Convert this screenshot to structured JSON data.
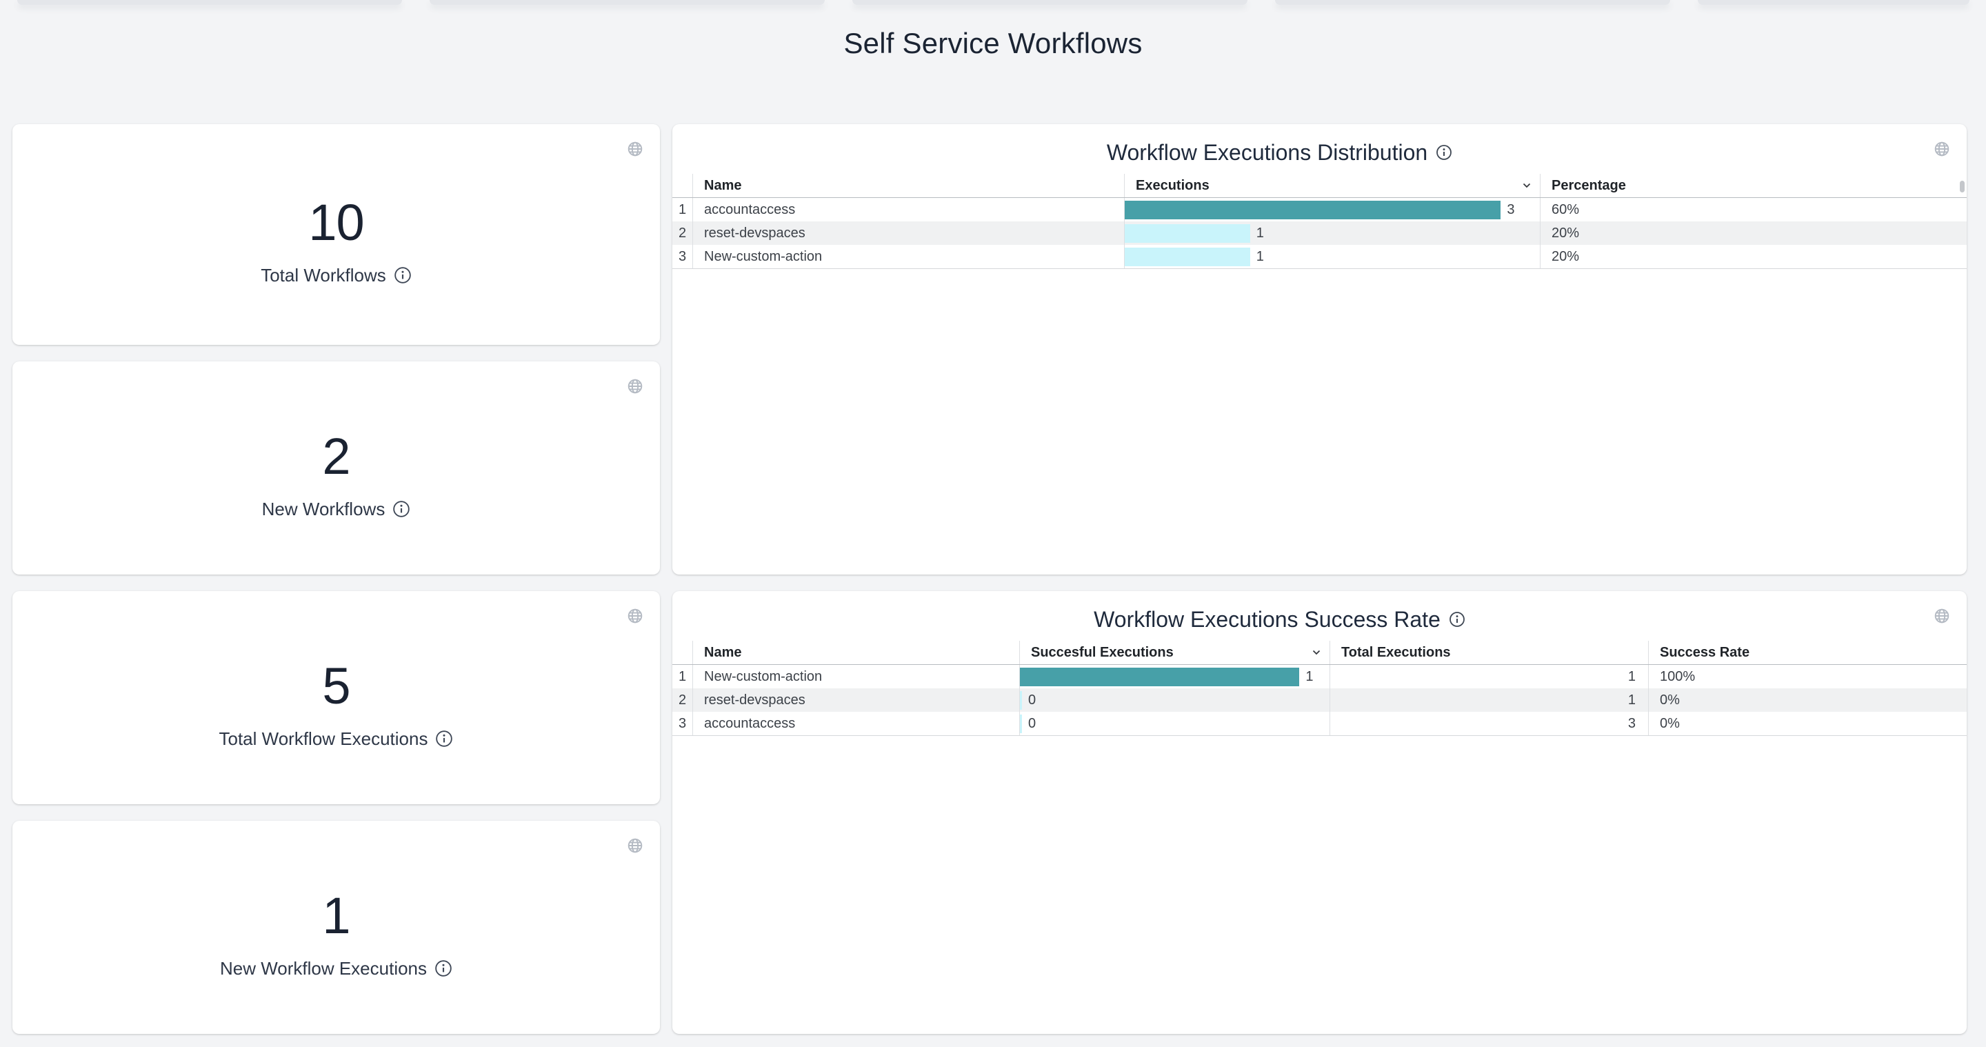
{
  "page": {
    "title": "Self Service Workflows"
  },
  "stat_cards": [
    {
      "value": "10",
      "label": "Total Workflows"
    },
    {
      "value": "2",
      "label": "New Workflows"
    },
    {
      "value": "5",
      "label": "Total Workflow Executions"
    },
    {
      "value": "1",
      "label": "New Workflow Executions"
    }
  ],
  "distribution_table": {
    "title": "Workflow Executions Distribution",
    "columns": {
      "name": "Name",
      "executions": "Executions",
      "percentage": "Percentage"
    },
    "sorted_column": "Executions",
    "sort_direction": "descending",
    "rows": [
      {
        "index": "1",
        "name": "accountaccess",
        "executions": 3,
        "percentage": "60%"
      },
      {
        "index": "2",
        "name": "reset-devspaces",
        "executions": 1,
        "percentage": "20%"
      },
      {
        "index": "3",
        "name": "New-custom-action",
        "executions": 1,
        "percentage": "20%"
      }
    ],
    "max_executions": 3
  },
  "success_table": {
    "title": "Workflow Executions Success Rate",
    "columns": {
      "name": "Name",
      "successful": "Succesful Executions",
      "total": "Total Executions",
      "rate": "Success Rate"
    },
    "sorted_column": "Succesful Executions",
    "sort_direction": "descending",
    "rows": [
      {
        "index": "1",
        "name": "New-custom-action",
        "successful": 1,
        "total": "1",
        "rate": "100%"
      },
      {
        "index": "2",
        "name": "reset-devspaces",
        "successful": 0,
        "total": "1",
        "rate": "0%"
      },
      {
        "index": "3",
        "name": "accountaccess",
        "successful": 0,
        "total": "3",
        "rate": "0%"
      }
    ],
    "max_successful": 1
  },
  "icons": {
    "globe": "globe-icon",
    "info": "info-icon",
    "sort": "chevron-down-icon"
  },
  "colors": {
    "page_bg": "#f3f4f6",
    "card_bg": "#ffffff",
    "title_text": "#1b2433",
    "bar_teal": "#47a0a8",
    "bar_cyan": "#c9f4fb",
    "row_stripe": "#f0f1f2",
    "divider": "#dddfe2",
    "header_underline": "#b7bbc0"
  }
}
